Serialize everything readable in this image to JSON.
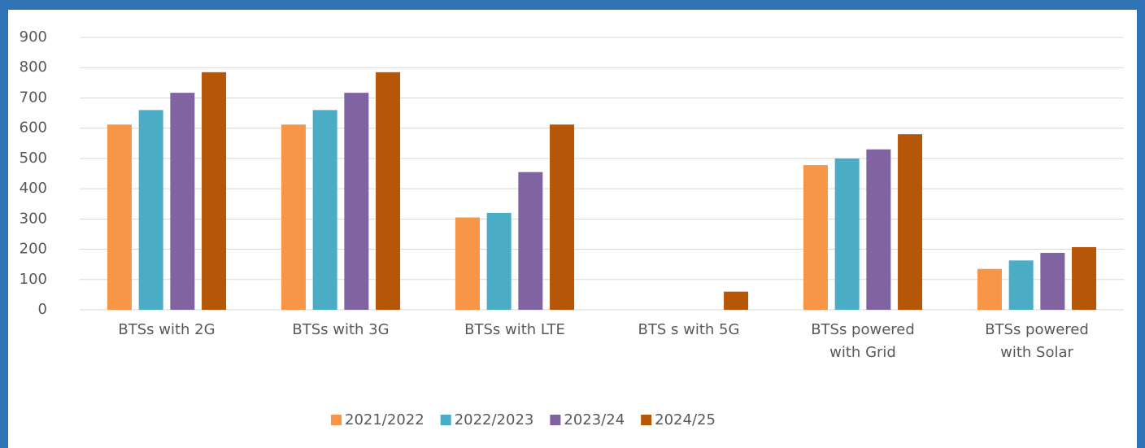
{
  "chart_data": {
    "type": "bar",
    "categories": [
      "BTSs with 2G",
      "BTSs with 3G",
      "BTSs with LTE",
      "BTS s with 5G",
      "BTSs powered with Grid",
      "BTSs powered with Solar"
    ],
    "series": [
      {
        "name": "2021/2022",
        "color": "#f79646",
        "values": [
          612,
          612,
          305,
          0,
          478,
          135
        ]
      },
      {
        "name": "2022/2023",
        "color": "#4bacc6",
        "values": [
          660,
          660,
          320,
          0,
          500,
          163
        ]
      },
      {
        "name": "2023/24",
        "color": "#8064a2",
        "values": [
          717,
          717,
          455,
          0,
          530,
          188
        ]
      },
      {
        "name": "2024/25",
        "color": "#b65708",
        "values": [
          785,
          785,
          612,
          60,
          580,
          207
        ]
      }
    ],
    "ylim": [
      0,
      900
    ],
    "yticks": [
      0,
      100,
      200,
      300,
      400,
      500,
      600,
      700,
      800,
      900
    ],
    "grid": true,
    "legend": "bottom"
  }
}
